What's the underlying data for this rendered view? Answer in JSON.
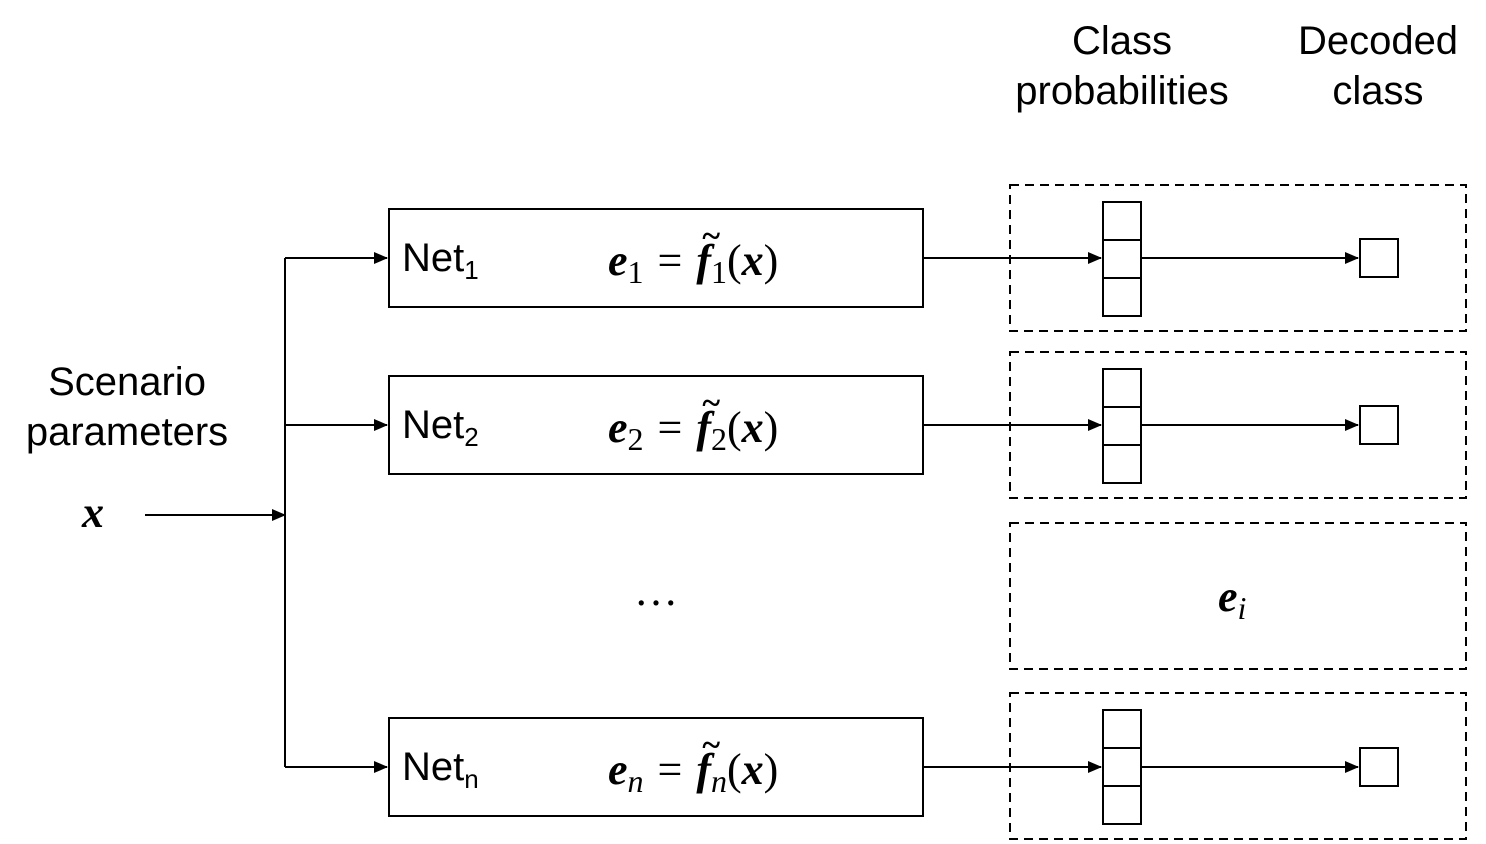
{
  "headers": {
    "class_probabilities": [
      "Class",
      "probabilities"
    ],
    "decoded_class": [
      "Decoded",
      "class"
    ]
  },
  "input": {
    "label": [
      "Scenario",
      "parameters"
    ],
    "symbol": "x"
  },
  "networks": [
    {
      "name": "Net",
      "sub": "1",
      "eq_lhs": "e",
      "eq_sub": "1",
      "func": "f",
      "func_sub": "1",
      "arg": "x"
    },
    {
      "name": "Net",
      "sub": "2",
      "eq_lhs": "e",
      "eq_sub": "2",
      "func": "f",
      "func_sub": "2",
      "arg": "x"
    },
    {
      "name": "Net",
      "sub": "n",
      "eq_lhs": "e",
      "eq_sub": "n",
      "func": "f",
      "func_sub": "n",
      "arg": "x"
    }
  ],
  "ellipsis": "…",
  "generic_embedding": {
    "symbol": "e",
    "sub": "i"
  },
  "colors": {
    "stroke": "#000000",
    "background": "#ffffff"
  }
}
